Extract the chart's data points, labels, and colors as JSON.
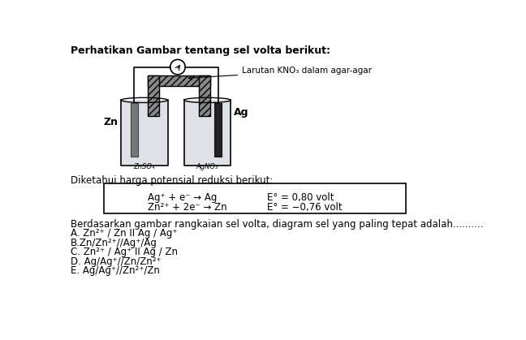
{
  "title": "Perhatikan Gambar tentang sel volta berikut:",
  "salt_bridge_label": "Larutan KNO₃ dalam agar-agar",
  "zn_label": "Zn",
  "ag_label": "Ag",
  "zn_solution": "ZnSO₄",
  "ag_solution": "AgNO₃",
  "diketahui_text": "Diketahui harga potensial reduksi berikut:",
  "eq1_left": "Ag⁺ + e⁻ → Ag",
  "eq1_right": "E° = 0,80 volt",
  "eq2_left": "Zn²⁺ + 2e⁻ → Zn",
  "eq2_right": "E° = −0,76 volt",
  "question": "Berdasarkan gambar rangkaian sel volta, diagram sel yang paling tepat adalah..........",
  "options": [
    "A. Zn²⁺ / Zn II Ag / Ag⁺",
    "B.Zn/Zn²⁺//Ag⁺/Ag",
    "C. Zn²⁺ / Ag⁺ II Ag / Zn",
    "D. Ag/Ag⁺//Zn/Zn²⁺",
    "E. Ag/Ag⁺//Zn²⁺/Zn"
  ],
  "bg_color": "#ffffff",
  "text_color": "#000000"
}
